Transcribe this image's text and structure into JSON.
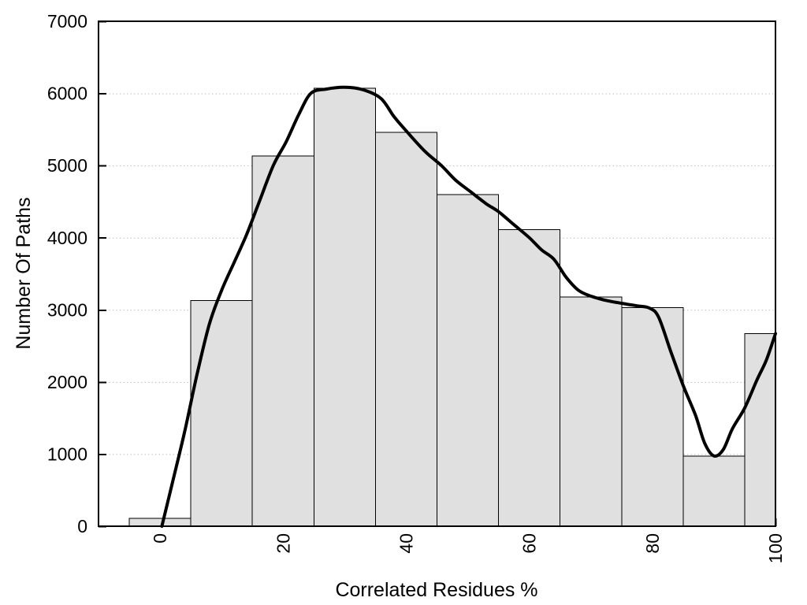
{
  "chart_data": {
    "type": "bar",
    "subtype": "histogram-with-density-curve",
    "title": "",
    "xlabel": "Correlated Residues %",
    "ylabel": "Number Of Paths",
    "xlim": [
      -10,
      100
    ],
    "ylim": [
      0,
      7000
    ],
    "x_ticks": [
      0,
      20,
      40,
      60,
      80,
      100
    ],
    "y_ticks": [
      0,
      1000,
      2000,
      3000,
      4000,
      5000,
      6000,
      7000
    ],
    "grid": {
      "horizontal_lines_at": [
        1000,
        2000,
        3000,
        4000,
        5000,
        6000
      ],
      "style": "dotted",
      "vertical": false
    },
    "legend": "none",
    "bins": {
      "edges": [
        -5,
        5,
        15,
        25,
        35,
        45,
        55,
        65,
        75,
        85,
        95,
        100
      ],
      "counts": [
        110,
        3130,
        5130,
        6070,
        5460,
        4600,
        4110,
        3180,
        3030,
        970,
        2670
      ]
    },
    "series": [
      {
        "name": "density-curve",
        "x": [
          0.3,
          2,
          4,
          6,
          8,
          10,
          12,
          14,
          16,
          18.4,
          20.5,
          22.5,
          24.5,
          27,
          30,
          33,
          35.9,
          38,
          40,
          43,
          45.7,
          48,
          50.4,
          53,
          55,
          57.5,
          60,
          62,
          64,
          66,
          68,
          70,
          72.5,
          75,
          77.5,
          79.5,
          81,
          83,
          85,
          87,
          88.5,
          90,
          91.5,
          93,
          95,
          97,
          98.5,
          100
        ],
        "y": [
          0,
          600,
          1310,
          2100,
          2800,
          3270,
          3650,
          4030,
          4470,
          5000,
          5330,
          5700,
          6000,
          6060,
          6085,
          6050,
          5930,
          5680,
          5480,
          5200,
          5000,
          4800,
          4640,
          4470,
          4360,
          4180,
          4000,
          3830,
          3700,
          3450,
          3270,
          3190,
          3130,
          3090,
          3055,
          3025,
          2900,
          2420,
          1950,
          1540,
          1150,
          975,
          1060,
          1350,
          1640,
          2030,
          2300,
          2670
        ]
      }
    ],
    "colors": {
      "bar_fill": "#e0e0e0",
      "bar_stroke": "#000000",
      "curve": "#000000",
      "grid": "#bfbfbf",
      "frame": "#000000",
      "text": "#000000",
      "background": "#ffffff"
    }
  }
}
